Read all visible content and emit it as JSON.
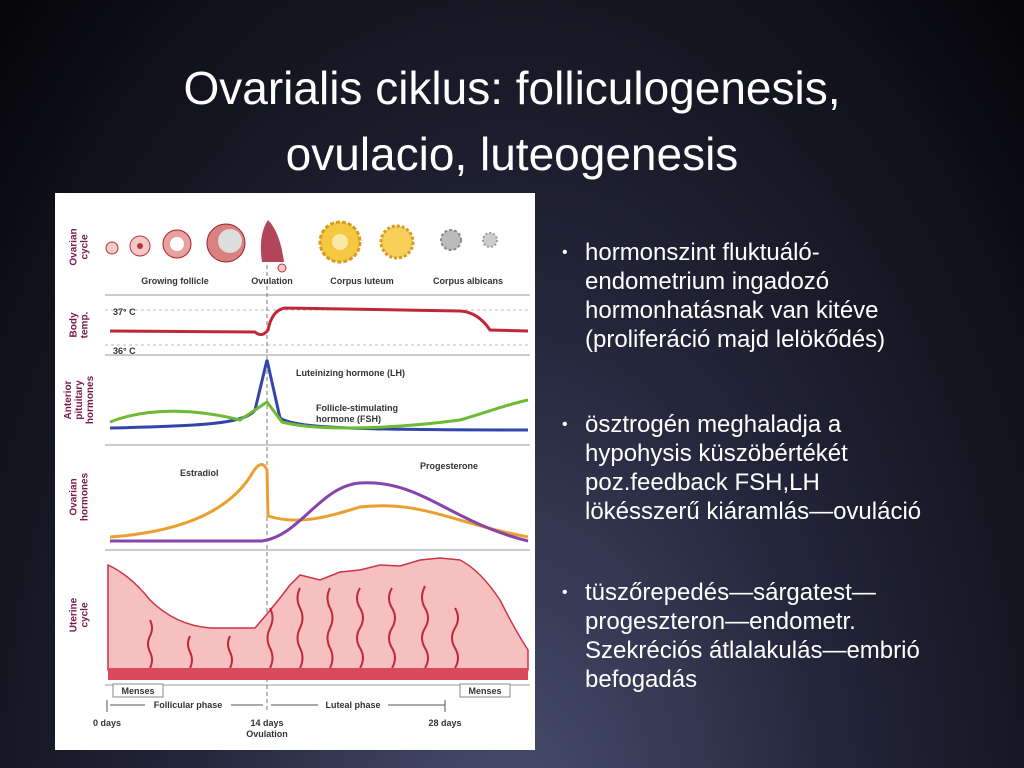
{
  "header": {
    "title_lines": [
      "Ovarialis ciklus: folliculogenesis,",
      "ovulacio, luteogenesis"
    ]
  },
  "figure": {
    "row_labels": [
      [
        "Ovarian",
        "cycle"
      ],
      [
        "Body",
        "temp."
      ],
      [
        "Anterior",
        "pituitary",
        "hormones"
      ],
      [
        "Ovarian",
        "hormones"
      ],
      [
        "Uterine",
        "cycle"
      ]
    ],
    "stages": [
      "Growing follicle",
      "Ovulation",
      "Corpus luteum",
      "Corpus albicans"
    ],
    "temps": [
      "37° C",
      "36° C"
    ],
    "lh": "Luteinizing hormone (LH)",
    "fsh": [
      "Follicle-stimulating",
      "hormone (FSH)"
    ],
    "estradiol": "Estradiol",
    "progesterone": "Progesterone",
    "menses": [
      "Menses",
      "Menses"
    ],
    "phases": [
      "Follicular phase",
      "Luteal phase"
    ],
    "days": [
      "0 days",
      "14 days",
      "28 days"
    ],
    "ovulation_day": "Ovulation"
  },
  "bullets": [
    [
      "hormonszint fluktuáló-",
      "endometrium ingadozó",
      "hormonhatásnak van kitéve",
      "(proliferáció majd lelökődés)"
    ],
    [
      "ösztrogén meghaladja a",
      "hypohysis küszöbértékét",
      "poz.feedback FSH,LH",
      "lökésszerű kiáramlás—ovuláció"
    ],
    [
      "tüszőrepedés—sárgatest—",
      "progeszteron—endometr.",
      "Szekréciós átlalakulás—embrió",
      "befogadás"
    ]
  ]
}
